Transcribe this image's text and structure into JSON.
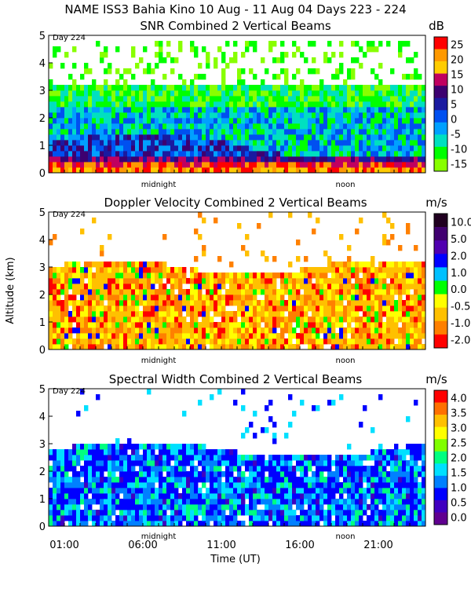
{
  "figure_title": "NAME ISS3 Bahia Kino  10 Aug - 11 Aug 04 Days 223 - 224",
  "y_axis_label": "Altitude (km)",
  "x_axis_label": "Time (UT)",
  "x_tick_labels": [
    "01:00",
    "06:00",
    "11:00",
    "16:00",
    "21:00"
  ],
  "day_label": "Day 224",
  "midnight_label": "midnight",
  "noon_label": "noon",
  "chart_data": [
    {
      "type": "heatmap",
      "title": "SNR Combined 2 Vertical Beams",
      "units": "dB",
      "xlabel": "",
      "ylabel": "Altitude (km)",
      "xlim": [
        0,
        24
      ],
      "ylim": [
        0,
        5
      ],
      "y_ticks": [
        "0",
        "1",
        "2",
        "3",
        "4",
        "5"
      ],
      "colorbar": {
        "labels": [
          "25",
          "20",
          "15",
          "10",
          "5",
          "0",
          "-5",
          "-10",
          "-15"
        ],
        "colors": [
          "#ff0000",
          "#ff9900",
          "#ffcc00",
          "#c00060",
          "#3d0070",
          "#1a1aa0",
          "#0050f0",
          "#00a0ff",
          "#00e0c0",
          "#00ff00",
          "#88ff00"
        ]
      },
      "description_values": {
        "near_surface_max_db": 25,
        "boundary_layer_top_km": 1.0,
        "echo_top_km": 4.8
      }
    },
    {
      "type": "heatmap",
      "title": "Doppler Velocity Combined 2 Vertical Beams",
      "units": "m/s",
      "xlabel": "",
      "ylabel": "Altitude (km)",
      "xlim": [
        0,
        24
      ],
      "ylim": [
        0,
        5
      ],
      "y_ticks": [
        "0",
        "1",
        "2",
        "3",
        "4",
        "5"
      ],
      "colorbar": {
        "labels": [
          "10.0",
          "5.0",
          "2.0",
          "1.0",
          "0.0",
          "-0.5",
          "-1.0",
          "-2.0"
        ],
        "colors": [
          "#200020",
          "#400070",
          "#5000b0",
          "#0000ff",
          "#00c0ff",
          "#00ff00",
          "#ffff00",
          "#ffc000",
          "#ff8000",
          "#ff0000"
        ]
      },
      "description_values": {
        "dominant_range_ms": [
          -1.0,
          0.0
        ],
        "echo_top_km": 3.2
      }
    },
    {
      "type": "heatmap",
      "title": "Spectral Width Combined 2 Vertical Beams",
      "units": "m/s",
      "xlabel": "Time (UT)",
      "ylabel": "Altitude (km)",
      "xlim": [
        0,
        24
      ],
      "ylim": [
        0,
        5
      ],
      "y_ticks": [
        "0",
        "1",
        "2",
        "3",
        "4",
        "5"
      ],
      "colorbar": {
        "labels": [
          "4.0",
          "3.5",
          "3.0",
          "2.5",
          "2.0",
          "1.5",
          "1.0",
          "0.5",
          "0.0"
        ],
        "colors": [
          "#ff0000",
          "#ff7000",
          "#ffc000",
          "#ffff00",
          "#80ff00",
          "#00ff80",
          "#00e0ff",
          "#0080ff",
          "#0000ff",
          "#4000c0",
          "#600090"
        ]
      },
      "description_values": {
        "dominant_range_ms": [
          0.5,
          1.5
        ],
        "echo_top_km": 3.0
      }
    }
  ]
}
